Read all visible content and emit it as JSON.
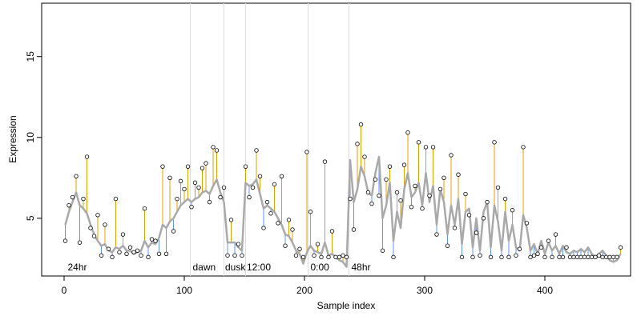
{
  "chart_data": {
    "type": "scatter",
    "xlabel": "Sample index",
    "ylabel": "Expression",
    "xlim": [
      -18.67,
      471.33
    ],
    "ylim": [
      1.43,
      18.3
    ],
    "xticks": [
      0,
      100,
      200,
      300,
      400
    ],
    "yticks": [
      5,
      10,
      15
    ],
    "point_color": "#ffffff",
    "above_color": "#E69F00",
    "below_color": "#6495ED",
    "vline_color": "#dddddd",
    "annotation_color": "#aaaaaa",
    "vlines": [
      105,
      133,
      151,
      203,
      237
    ],
    "annotations": [
      {
        "text": "24hr",
        "x": 3
      },
      {
        "text": "dawn",
        "x": 107
      },
      {
        "text": "dusk",
        "x": 134
      },
      {
        "text": "12:00",
        "x": 152
      },
      {
        "text": "0:00",
        "x": 205
      },
      {
        "text": "48hr",
        "x": 239
      }
    ],
    "x": [
      1,
      4,
      7,
      10,
      13,
      16,
      19,
      22,
      25,
      28,
      31,
      34,
      37,
      40,
      43,
      46,
      49,
      52,
      55,
      58,
      61,
      64,
      67,
      70,
      73,
      76,
      79,
      82,
      85,
      88,
      91,
      94,
      97,
      100,
      103,
      106,
      109,
      112,
      115,
      118,
      121,
      124,
      127,
      130,
      133,
      136,
      139,
      142,
      145,
      148,
      151,
      154,
      157,
      160,
      163,
      166,
      169,
      172,
      175,
      178,
      181,
      184,
      187,
      190,
      193,
      196,
      199,
      202,
      205,
      208,
      211,
      214,
      217,
      220,
      223,
      226,
      229,
      232,
      235,
      238,
      241,
      244,
      247,
      250,
      253,
      256,
      259,
      262,
      265,
      268,
      271,
      274,
      277,
      280,
      283,
      286,
      289,
      292,
      295,
      298,
      301,
      304,
      307,
      310,
      313,
      316,
      319,
      322,
      325,
      328,
      331,
      334,
      337,
      340,
      343,
      346,
      349,
      352,
      355,
      358,
      361,
      364,
      367,
      370,
      373,
      376,
      379,
      382,
      385,
      388,
      391,
      394,
      397,
      400,
      403,
      406,
      409,
      412,
      415,
      418,
      421,
      424,
      427,
      430,
      433,
      436,
      439,
      442,
      445,
      448,
      451,
      454,
      457,
      460,
      463
    ],
    "values": [
      3.6,
      5.8,
      6.3,
      7.6,
      3.5,
      6.2,
      8.8,
      4.4,
      3.9,
      5.2,
      2.7,
      4.6,
      3.1,
      2.6,
      6.2,
      2.9,
      4.0,
      2.8,
      3.2,
      2.9,
      3.0,
      2.7,
      5.6,
      2.6,
      3.7,
      3.6,
      2.8,
      8.2,
      2.8,
      7.5,
      4.2,
      6.2,
      7.3,
      6.8,
      8.2,
      5.7,
      7.2,
      6.9,
      8.1,
      8.4,
      6.0,
      9.4,
      9.2,
      6.3,
      6.9,
      2.7,
      4.9,
      2.7,
      3.4,
      2.7,
      8.2,
      6.3,
      6.9,
      9.2,
      7.6,
      4.4,
      6.0,
      5.3,
      7.1,
      4.7,
      7.6,
      3.3,
      4.9,
      4.3,
      2.7,
      3.1,
      2.6,
      9.1,
      5.4,
      2.7,
      3.4,
      2.6,
      8.5,
      2.6,
      4.2,
      2.6,
      2.6,
      2.7,
      2.6,
      6.2,
      4.3,
      9.6,
      10.8,
      8.8,
      6.6,
      5.9,
      7.4,
      6.4,
      3.0,
      7.4,
      8.2,
      2.6,
      6.6,
      6.1,
      8.3,
      10.3,
      5.7,
      7.0,
      9.7,
      5.6,
      9.4,
      6.4,
      9.4,
      4.0,
      6.8,
      7.5,
      3.3,
      8.9,
      4.4,
      7.7,
      2.6,
      6.5,
      5.2,
      2.6,
      4.1,
      2.7,
      5.0,
      6.0,
      2.6,
      9.7,
      6.9,
      2.6,
      6.2,
      2.6,
      5.5,
      2.7,
      3.1,
      9.4,
      4.7,
      2.6,
      2.7,
      2.8,
      3.2,
      2.6,
      3.6,
      2.6,
      4.0,
      2.6,
      2.6,
      3.2,
      2.6,
      2.6,
      2.6,
      2.6,
      2.6,
      2.6,
      2.6,
      2.6,
      2.7,
      2.6,
      2.6,
      2.6,
      2.6,
      2.6,
      3.2
    ],
    "fit": {
      "color": "#a9a9a9",
      "values": [
        4.6,
        5.4,
        6.0,
        6.6,
        5.8,
        5.6,
        5.3,
        4.6,
        4.0,
        3.6,
        3.3,
        3.4,
        3.0,
        2.9,
        3.2,
        3.1,
        3.3,
        3.0,
        3.0,
        2.8,
        2.9,
        3.0,
        3.6,
        3.2,
        3.5,
        3.4,
        3.8,
        4.6,
        4.4,
        4.8,
        5.0,
        5.4,
        5.8,
        6.0,
        6.2,
        6.0,
        6.2,
        6.3,
        6.6,
        6.7,
        6.5,
        7.0,
        7.4,
        6.6,
        6.0,
        3.5,
        3.5,
        3.5,
        3.2,
        3.0,
        7.2,
        7.0,
        7.1,
        7.4,
        6.5,
        5.6,
        5.8,
        5.6,
        5.4,
        5.0,
        4.6,
        4.0,
        3.9,
        3.5,
        3.0,
        2.8,
        2.2,
        2.9,
        3.3,
        3.0,
        2.9,
        2.8,
        3.5,
        2.7,
        2.8,
        2.6,
        2.4,
        2.3,
        2.0,
        8.6,
        6.0,
        6.8,
        8.2,
        7.6,
        6.6,
        6.4,
        7.8,
        8.8,
        5.0,
        5.8,
        7.2,
        3.6,
        5.4,
        4.4,
        6.8,
        7.8,
        6.3,
        6.6,
        7.2,
        5.8,
        7.8,
        6.0,
        7.0,
        4.6,
        6.8,
        6.0,
        4.0,
        5.8,
        4.6,
        6.2,
        3.4,
        5.4,
        5.6,
        3.2,
        5.0,
        3.0,
        5.4,
        6.0,
        3.2,
        5.8,
        4.8,
        3.0,
        5.4,
        3.6,
        4.6,
        3.2,
        3.0,
        5.2,
        4.4,
        3.0,
        3.4,
        2.8,
        3.6,
        2.8,
        3.5,
        3.0,
        3.3,
        2.8,
        3.3,
        2.9,
        2.8,
        3.0,
        2.9,
        3.1,
        2.9,
        3.2,
        2.8,
        2.6,
        2.8,
        3.0,
        2.7,
        2.4,
        2.3,
        2.4,
        2.8
      ]
    }
  }
}
